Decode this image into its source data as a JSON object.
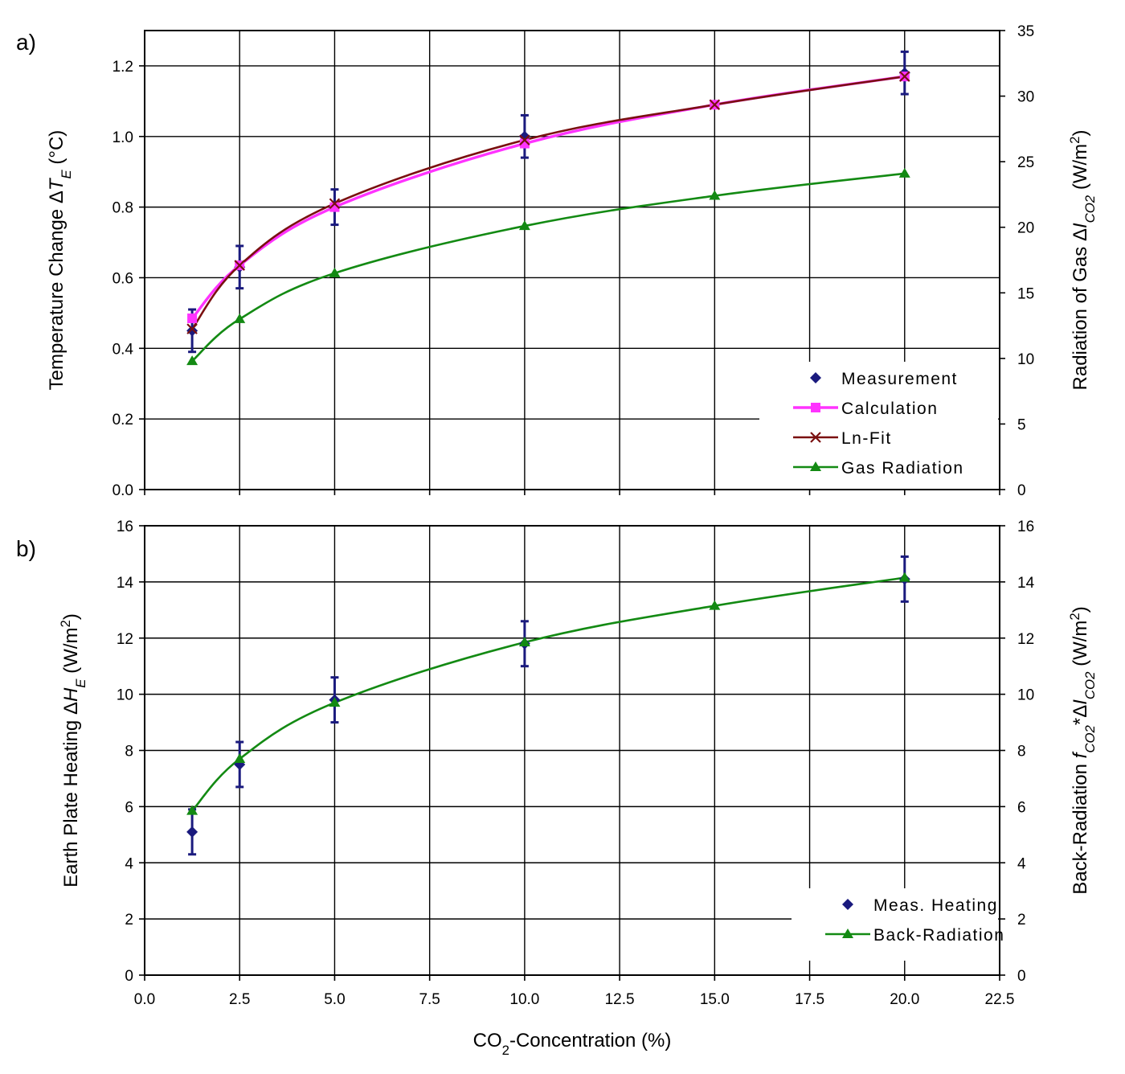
{
  "colors": {
    "measurement": "#1a1a7e",
    "calculation": "#ff33ff",
    "ln_fit": "#7a1010",
    "gas_radiation": "#138a13",
    "grid": "#000000"
  },
  "chart_data": [
    {
      "type": "line",
      "panel_label": "a)",
      "xlabel": "CO2-Concentration (%)",
      "xlim": [
        0,
        22.5
      ],
      "x_ticks": [
        "0.0",
        "2.5",
        "5.0",
        "7.5",
        "10.0",
        "12.5",
        "15.0",
        "17.5",
        "20.0",
        "22.5"
      ],
      "ylabel_left": "Temperature Change ΔT_E (°C)",
      "ylim_left": [
        0,
        1.3
      ],
      "y_ticks_left": [
        "0.0",
        "0.2",
        "0.4",
        "0.6",
        "0.8",
        "1.0",
        "1.2"
      ],
      "ylabel_right": "Radiation of Gas ΔI_CO2 (W/m²)",
      "ylim_right": [
        0,
        35
      ],
      "y_ticks_right": [
        "0",
        "5",
        "10",
        "15",
        "20",
        "25",
        "30",
        "35"
      ],
      "grid": true,
      "legend_position": "bottom-right",
      "series": [
        {
          "name": "Measurement",
          "axis": "left",
          "marker": "diamond",
          "x": [
            1.25,
            2.5,
            5,
            10,
            20
          ],
          "y": [
            0.45,
            0.63,
            0.8,
            1.0,
            1.18
          ],
          "error": [
            0.06,
            0.06,
            0.05,
            0.06,
            0.06
          ]
        },
        {
          "name": "Calculation",
          "axis": "left",
          "marker": "square",
          "x": [
            1.25,
            2.5,
            5,
            10,
            15,
            20
          ],
          "y": [
            0.485,
            0.635,
            0.8,
            0.98,
            1.09,
            1.17
          ]
        },
        {
          "name": "Ln-Fit",
          "axis": "left",
          "marker": "x",
          "x": [
            1.25,
            2.5,
            5,
            10,
            15,
            20
          ],
          "y": [
            0.455,
            0.635,
            0.81,
            0.99,
            1.09,
            1.17
          ]
        },
        {
          "name": "Gas Radiation",
          "axis": "right",
          "marker": "triangle",
          "x": [
            1.25,
            2.5,
            5,
            10,
            15,
            20
          ],
          "y": [
            9.8,
            13.0,
            16.5,
            20.1,
            22.4,
            24.1
          ]
        }
      ]
    },
    {
      "type": "line",
      "panel_label": "b)",
      "xlabel": "CO2-Concentration (%)",
      "xlim": [
        0,
        22.5
      ],
      "x_ticks": [
        "0.0",
        "2.5",
        "5.0",
        "7.5",
        "10.0",
        "12.5",
        "15.0",
        "17.5",
        "20.0",
        "22.5"
      ],
      "ylabel_left": "Earth Plate Heating ΔH_E (W/m²)",
      "ylim_left": [
        0,
        16
      ],
      "y_ticks_left": [
        "0",
        "2",
        "4",
        "6",
        "8",
        "10",
        "12",
        "14",
        "16"
      ],
      "ylabel_right": "Back-Radiation f_CO2*ΔI_CO2 (W/m²)",
      "ylim_right": [
        0,
        16
      ],
      "y_ticks_right": [
        "0",
        "2",
        "4",
        "6",
        "8",
        "10",
        "12",
        "14",
        "16"
      ],
      "grid": true,
      "legend_position": "bottom-right",
      "series": [
        {
          "name": "Meas. Heating",
          "axis": "left",
          "marker": "diamond",
          "x": [
            1.25,
            2.5,
            5,
            10,
            20
          ],
          "y": [
            5.1,
            7.5,
            9.8,
            11.8,
            14.1
          ],
          "error": [
            0.8,
            0.8,
            0.8,
            0.8,
            0.8
          ]
        },
        {
          "name": "Back-Radiation",
          "axis": "right",
          "marker": "triangle",
          "x": [
            1.25,
            2.5,
            5,
            10,
            15,
            20
          ],
          "y": [
            5.85,
            7.7,
            9.7,
            11.85,
            13.15,
            14.15
          ]
        }
      ]
    }
  ]
}
